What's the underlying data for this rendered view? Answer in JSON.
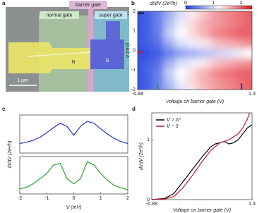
{
  "figure_a": {
    "panel": "a",
    "barrier_gate": "barrier gate",
    "normal_gate": "normal gate",
    "super_gate": "super gate",
    "n_label": "N",
    "s_label": "S",
    "scale_bar": "1 µm"
  },
  "chart_data": [
    {
      "type": "heatmap",
      "panel": "b",
      "x": [
        -0.88,
        -0.66,
        -0.44,
        -0.22,
        0,
        0.22,
        0.44,
        0.66,
        0.88,
        1.1,
        1.3
      ],
      "y": [
        -2,
        -1.5,
        -1,
        -0.5,
        0,
        0.5,
        1,
        1.5,
        2
      ],
      "z": [
        [
          0.1,
          0.2,
          0.4,
          0.7,
          1.0,
          1.3,
          1.5,
          1.7,
          1.8,
          1.9,
          2.0
        ],
        [
          0.1,
          0.2,
          0.4,
          0.8,
          1.1,
          1.4,
          1.6,
          1.7,
          1.8,
          1.9,
          2.0
        ],
        [
          0.1,
          0.2,
          0.4,
          0.9,
          1.2,
          1.4,
          1.6,
          1.8,
          1.9,
          2.0,
          2.0
        ],
        [
          0.1,
          0.2,
          0.3,
          0.7,
          1.0,
          1.1,
          1.3,
          1.5,
          1.6,
          1.7,
          1.8
        ],
        [
          0.1,
          0.1,
          0.2,
          0.4,
          0.6,
          0.7,
          0.8,
          0.9,
          1.0,
          1.1,
          1.2
        ],
        [
          0.1,
          0.2,
          0.3,
          0.7,
          1.0,
          1.1,
          1.3,
          1.5,
          1.6,
          1.7,
          1.8
        ],
        [
          0.1,
          0.2,
          0.4,
          0.9,
          1.2,
          1.4,
          1.6,
          1.8,
          1.9,
          2.0,
          2.0
        ],
        [
          0.1,
          0.2,
          0.4,
          0.8,
          1.1,
          1.4,
          1.6,
          1.7,
          1.8,
          1.9,
          2.0
        ],
        [
          0.1,
          0.2,
          0.4,
          0.7,
          1.0,
          1.3,
          1.5,
          1.7,
          1.8,
          1.9,
          2.0
        ]
      ],
      "zlim": [
        0,
        2.4
      ],
      "colormap": [
        "#1d3fe0",
        "#ffffff",
        "#e0101e"
      ],
      "colorbar_ticks": [
        0,
        1,
        2
      ],
      "colorbar_label": "dI/dV (2e²/h)",
      "xlim": [
        -0.88,
        1.3
      ],
      "xticks": [
        -0.88,
        1.3
      ],
      "ylim": [
        -2,
        2
      ],
      "yticks": [
        -2,
        -1,
        0,
        1,
        2
      ],
      "xlabel": "Voltage on barrier gate (V)",
      "ylabel": "V (mV)",
      "markers": [
        {
          "axis": "y",
          "value": 1.9,
          "color": "#111111"
        },
        {
          "axis": "y",
          "value": -0.1,
          "color": "#c0182a"
        },
        {
          "axis": "x",
          "value": -0.5,
          "color": "#2ca02c"
        },
        {
          "axis": "x",
          "value": 1.1,
          "color": "#2233cc"
        }
      ]
    },
    {
      "type": "line",
      "panel": "c",
      "ylabel": "dI/dV (2e²/h)",
      "x": [
        -2,
        -1.75,
        -1.5,
        -1.25,
        -1,
        -0.75,
        -0.5,
        -0.25,
        0,
        0.25,
        0.5,
        0.75,
        1,
        1.25,
        1.5,
        1.75,
        2
      ],
      "series": [
        {
          "color": "#2233cc",
          "values": [
            0.95,
            0.97,
            1.0,
            1.05,
            1.12,
            1.2,
            1.27,
            1.22,
            1.08,
            1.22,
            1.3,
            1.27,
            1.18,
            1.1,
            1.03,
            0.98,
            0.95
          ]
        }
      ],
      "xlim": [
        -2,
        2
      ],
      "ylim": [
        0.8,
        1.4
      ]
    },
    {
      "type": "line",
      "x": [
        -2,
        -1.75,
        -1.5,
        -1.25,
        -1,
        -0.75,
        -0.5,
        -0.25,
        0,
        0.25,
        0.5,
        0.75,
        1,
        1.25,
        1.5,
        1.75,
        2
      ],
      "series": [
        {
          "color": "#2ca02c",
          "values": [
            0.15,
            0.2,
            0.3,
            0.45,
            0.6,
            0.85,
            0.9,
            0.45,
            0.3,
            0.45,
            0.95,
            0.85,
            0.6,
            0.4,
            0.25,
            0.18,
            0.12
          ]
        }
      ],
      "xlim": [
        -2,
        2
      ],
      "xticks": [
        -2,
        -1,
        0,
        1,
        2
      ],
      "ylim": [
        0,
        1.1
      ],
      "xlabel": "V (mV)"
    },
    {
      "type": "line",
      "panel": "d",
      "ylabel": "dI/dV (2e²/h)",
      "xlabel": "Voltage on barrier gate (V)",
      "series": [
        {
          "name": "V > Δ*",
          "color": "#000000",
          "x": [
            -0.88,
            -0.6,
            -0.4,
            -0.2,
            0,
            0.2,
            0.4,
            0.5,
            0.6,
            0.7,
            0.8,
            0.9,
            1.0,
            1.1,
            1.2,
            1.3
          ],
          "values": [
            0,
            0.02,
            0.1,
            0.3,
            0.5,
            0.7,
            0.88,
            0.93,
            0.95,
            0.97,
            0.93,
            0.95,
            1.0,
            1.1,
            1.2,
            1.25
          ]
        },
        {
          "name": "V ~ 0",
          "color": "#c0182a",
          "x": [
            -0.88,
            -0.6,
            -0.4,
            -0.2,
            0,
            0.2,
            0.4,
            0.6,
            0.8,
            1.0,
            1.1,
            1.2,
            1.25
          ],
          "values": [
            0,
            0.01,
            0.05,
            0.2,
            0.4,
            0.62,
            0.82,
            0.95,
            1.0,
            1.1,
            1.2,
            1.35,
            1.45
          ]
        }
      ],
      "xlim": [
        -0.88,
        1.3
      ],
      "xticks": [
        -0.88,
        1.3
      ],
      "ylim": [
        0,
        1.45
      ],
      "yticks": [
        0,
        1
      ]
    }
  ]
}
